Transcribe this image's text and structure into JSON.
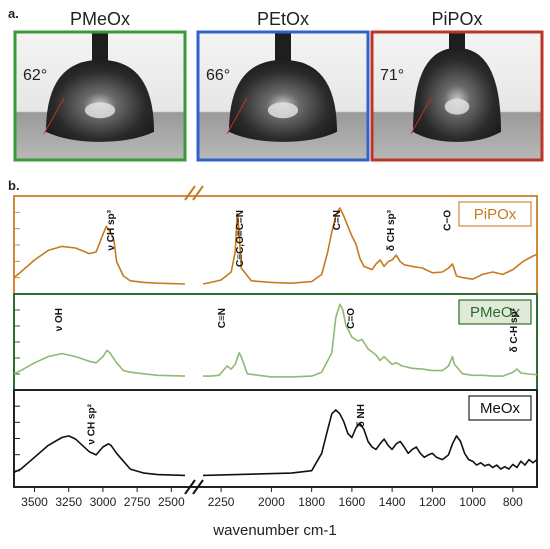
{
  "panel_a": {
    "label": "a.",
    "droplets": [
      {
        "polymer": "PMeOx",
        "angle_label": "62°",
        "contact_angle_deg": 62,
        "frame_color": "#3a9a3a"
      },
      {
        "polymer": "PEtOx",
        "angle_label": "66°",
        "contact_angle_deg": 66,
        "frame_color": "#2f63c9"
      },
      {
        "polymer": "PiPOx",
        "angle_label": "71°",
        "contact_angle_deg": 71,
        "frame_color": "#c0332b"
      }
    ]
  },
  "panel_b": {
    "label": "b."
  },
  "chart_data": {
    "type": "line",
    "xlabel": "wavenumber cm-1",
    "xlim": [
      3650,
      680
    ],
    "x_reversed": true,
    "axis_break": [
      2400,
      2340
    ],
    "xticks": [
      "3500",
      "3250",
      "3000",
      "2750",
      "2500",
      "2250",
      "2000",
      "1800",
      "1600",
      "1400",
      "1200",
      "1000",
      "800"
    ],
    "series": [
      {
        "name": "PiPOx",
        "color": "#c77a1e",
        "frame_color": "#d08a3a",
        "points": [
          [
            3650,
            0.08
          ],
          [
            3600,
            0.15
          ],
          [
            3500,
            0.3
          ],
          [
            3400,
            0.42
          ],
          [
            3300,
            0.47
          ],
          [
            3200,
            0.45
          ],
          [
            3100,
            0.38
          ],
          [
            3050,
            0.4
          ],
          [
            3000,
            0.62
          ],
          [
            2975,
            0.72
          ],
          [
            2950,
            0.66
          ],
          [
            2920,
            0.55
          ],
          [
            2900,
            0.28
          ],
          [
            2850,
            0.1
          ],
          [
            2800,
            0.04
          ],
          [
            2700,
            0.02
          ],
          [
            2600,
            0.01
          ],
          [
            2400,
            0.0
          ],
          [
            2340,
            0.0
          ],
          [
            2300,
            0.02
          ],
          [
            2250,
            0.05
          ],
          [
            2200,
            0.15
          ],
          [
            2180,
            0.4
          ],
          [
            2170,
            0.88
          ],
          [
            2160,
            0.65
          ],
          [
            2150,
            0.2
          ],
          [
            2100,
            0.04
          ],
          [
            2000,
            0.02
          ],
          [
            1900,
            0.01
          ],
          [
            1800,
            0.03
          ],
          [
            1750,
            0.12
          ],
          [
            1720,
            0.4
          ],
          [
            1700,
            0.65
          ],
          [
            1680,
            0.85
          ],
          [
            1660,
            0.95
          ],
          [
            1640,
            0.85
          ],
          [
            1620,
            0.72
          ],
          [
            1600,
            0.6
          ],
          [
            1580,
            0.5
          ],
          [
            1560,
            0.32
          ],
          [
            1540,
            0.22
          ],
          [
            1500,
            0.18
          ],
          [
            1480,
            0.25
          ],
          [
            1460,
            0.3
          ],
          [
            1440,
            0.22
          ],
          [
            1420,
            0.28
          ],
          [
            1400,
            0.3
          ],
          [
            1380,
            0.36
          ],
          [
            1360,
            0.28
          ],
          [
            1340,
            0.24
          ],
          [
            1300,
            0.22
          ],
          [
            1250,
            0.2
          ],
          [
            1200,
            0.14
          ],
          [
            1150,
            0.15
          ],
          [
            1120,
            0.2
          ],
          [
            1100,
            0.25
          ],
          [
            1080,
            0.1
          ],
          [
            1050,
            0.08
          ],
          [
            1000,
            0.06
          ],
          [
            950,
            0.12
          ],
          [
            900,
            0.15
          ],
          [
            850,
            0.12
          ],
          [
            800,
            0.18
          ],
          [
            750,
            0.28
          ],
          [
            700,
            0.35
          ],
          [
            680,
            0.37
          ]
        ],
        "annotations": [
          {
            "text": "ν CH sp³",
            "x": 2920
          },
          {
            "text": "C≡C,O=C=N",
            "x": 2140
          },
          {
            "text": "C=N",
            "x": 1660
          },
          {
            "text": "δ CH sp³",
            "x": 1390
          },
          {
            "text": "C−O",
            "x": 1110
          }
        ]
      },
      {
        "name": "PMeOx",
        "color": "#8fba74",
        "frame_color": "#2e6b2e",
        "points": [
          [
            3650,
            0.08
          ],
          [
            3600,
            0.12
          ],
          [
            3500,
            0.22
          ],
          [
            3400,
            0.3
          ],
          [
            3300,
            0.34
          ],
          [
            3200,
            0.3
          ],
          [
            3100,
            0.24
          ],
          [
            3050,
            0.22
          ],
          [
            3000,
            0.3
          ],
          [
            2970,
            0.38
          ],
          [
            2950,
            0.35
          ],
          [
            2900,
            0.22
          ],
          [
            2850,
            0.12
          ],
          [
            2800,
            0.1
          ],
          [
            2700,
            0.08
          ],
          [
            2600,
            0.06
          ],
          [
            2400,
            0.05
          ],
          [
            2340,
            0.05
          ],
          [
            2300,
            0.05
          ],
          [
            2260,
            0.06
          ],
          [
            2240,
            0.12
          ],
          [
            2220,
            0.18
          ],
          [
            2200,
            0.14
          ],
          [
            2180,
            0.2
          ],
          [
            2160,
            0.35
          ],
          [
            2150,
            0.3
          ],
          [
            2120,
            0.08
          ],
          [
            2000,
            0.04
          ],
          [
            1900,
            0.04
          ],
          [
            1800,
            0.05
          ],
          [
            1750,
            0.1
          ],
          [
            1700,
            0.35
          ],
          [
            1680,
            0.8
          ],
          [
            1660,
            0.97
          ],
          [
            1645,
            0.9
          ],
          [
            1630,
            0.7
          ],
          [
            1600,
            0.55
          ],
          [
            1570,
            0.5
          ],
          [
            1550,
            0.52
          ],
          [
            1520,
            0.4
          ],
          [
            1480,
            0.32
          ],
          [
            1460,
            0.25
          ],
          [
            1440,
            0.3
          ],
          [
            1420,
            0.25
          ],
          [
            1400,
            0.2
          ],
          [
            1380,
            0.22
          ],
          [
            1350,
            0.18
          ],
          [
            1300,
            0.15
          ],
          [
            1250,
            0.14
          ],
          [
            1200,
            0.12
          ],
          [
            1150,
            0.12
          ],
          [
            1120,
            0.18
          ],
          [
            1100,
            0.3
          ],
          [
            1090,
            0.2
          ],
          [
            1050,
            0.08
          ],
          [
            1000,
            0.06
          ],
          [
            950,
            0.06
          ],
          [
            900,
            0.05
          ],
          [
            850,
            0.05
          ],
          [
            800,
            0.1
          ],
          [
            780,
            0.14
          ],
          [
            760,
            0.09
          ],
          [
            700,
            0.07
          ],
          [
            680,
            0.07
          ]
        ],
        "annotations": [
          {
            "text": "ν OH",
            "x": 3300
          },
          {
            "text": "C≡N",
            "x": 2230
          },
          {
            "text": "C=O",
            "x": 1590
          },
          {
            "text": "δ C-H sp²",
            "x": 780
          }
        ]
      },
      {
        "name": "MeOx",
        "color": "#111111",
        "frame_color": "#222222",
        "points": [
          [
            3650,
            0.06
          ],
          [
            3600,
            0.1
          ],
          [
            3500,
            0.25
          ],
          [
            3400,
            0.4
          ],
          [
            3300,
            0.5
          ],
          [
            3250,
            0.52
          ],
          [
            3200,
            0.48
          ],
          [
            3100,
            0.32
          ],
          [
            3050,
            0.28
          ],
          [
            3000,
            0.38
          ],
          [
            2960,
            0.42
          ],
          [
            2940,
            0.4
          ],
          [
            2900,
            0.3
          ],
          [
            2850,
            0.2
          ],
          [
            2800,
            0.1
          ],
          [
            2700,
            0.05
          ],
          [
            2600,
            0.03
          ],
          [
            2400,
            0.02
          ],
          [
            2340,
            0.02
          ],
          [
            1900,
            0.05
          ],
          [
            1800,
            0.08
          ],
          [
            1750,
            0.3
          ],
          [
            1720,
            0.6
          ],
          [
            1700,
            0.8
          ],
          [
            1680,
            0.85
          ],
          [
            1660,
            0.8
          ],
          [
            1640,
            0.7
          ],
          [
            1620,
            0.55
          ],
          [
            1600,
            0.5
          ],
          [
            1580,
            0.62
          ],
          [
            1560,
            0.68
          ],
          [
            1540,
            0.6
          ],
          [
            1520,
            0.45
          ],
          [
            1500,
            0.38
          ],
          [
            1480,
            0.35
          ],
          [
            1460,
            0.42
          ],
          [
            1440,
            0.48
          ],
          [
            1420,
            0.4
          ],
          [
            1400,
            0.35
          ],
          [
            1380,
            0.42
          ],
          [
            1360,
            0.45
          ],
          [
            1340,
            0.38
          ],
          [
            1320,
            0.3
          ],
          [
            1300,
            0.35
          ],
          [
            1280,
            0.38
          ],
          [
            1260,
            0.3
          ],
          [
            1240,
            0.25
          ],
          [
            1220,
            0.28
          ],
          [
            1200,
            0.3
          ],
          [
            1180,
            0.25
          ],
          [
            1150,
            0.22
          ],
          [
            1120,
            0.28
          ],
          [
            1100,
            0.42
          ],
          [
            1080,
            0.52
          ],
          [
            1060,
            0.45
          ],
          [
            1040,
            0.3
          ],
          [
            1020,
            0.22
          ],
          [
            1000,
            0.2
          ],
          [
            980,
            0.15
          ],
          [
            960,
            0.18
          ],
          [
            940,
            0.14
          ],
          [
            920,
            0.16
          ],
          [
            900,
            0.12
          ],
          [
            880,
            0.15
          ],
          [
            860,
            0.1
          ],
          [
            840,
            0.13
          ],
          [
            820,
            0.1
          ],
          [
            800,
            0.16
          ],
          [
            780,
            0.12
          ],
          [
            760,
            0.2
          ],
          [
            740,
            0.15
          ],
          [
            720,
            0.22
          ],
          [
            700,
            0.18
          ],
          [
            680,
            0.22
          ]
        ],
        "annotations": [
          {
            "text": "ν CH sp²",
            "x": 3060
          },
          {
            "text": "δ NH",
            "x": 1540
          }
        ]
      }
    ]
  }
}
